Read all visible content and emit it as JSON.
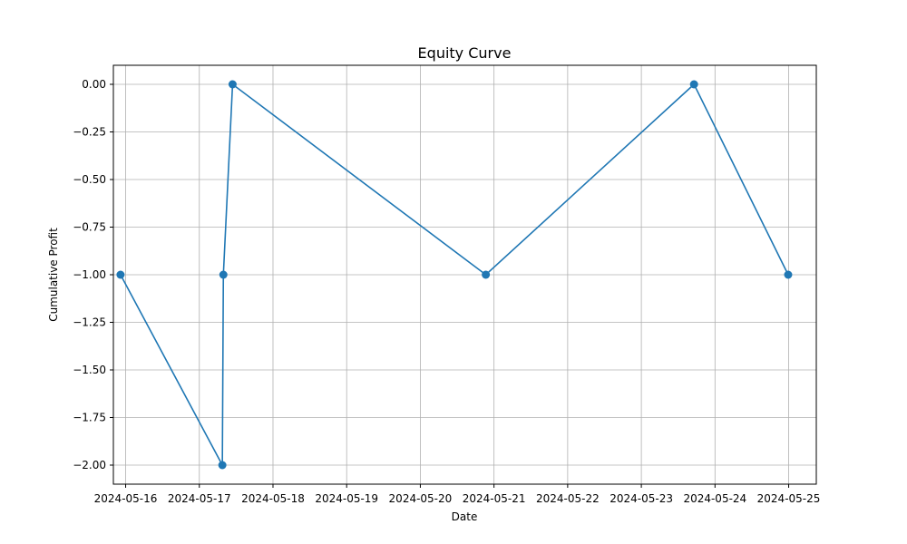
{
  "chart_data": {
    "type": "line",
    "title": "Equity Curve",
    "xlabel": "Date",
    "ylabel": "Cumulative Profit",
    "x_ticks": [
      "2024-05-16",
      "2024-05-17",
      "2024-05-18",
      "2024-05-19",
      "2024-05-20",
      "2024-05-21",
      "2024-05-22",
      "2024-05-23",
      "2024-05-24",
      "2024-05-25"
    ],
    "y_ticks": [
      "0.00",
      "−0.25",
      "−0.50",
      "−0.75",
      "−1.00",
      "−1.25",
      "−1.50",
      "−1.75",
      "−2.00"
    ],
    "y_tick_values": [
      0,
      -0.25,
      -0.5,
      -0.75,
      -1.0,
      -1.25,
      -1.5,
      -1.75,
      -2.0
    ],
    "xlim": [
      "2024-05-15 20:00",
      "2024-05-25 09:00"
    ],
    "ylim": [
      -2.1,
      0.1
    ],
    "grid": true,
    "series": [
      {
        "color": "#1f77b4",
        "marker": "circle",
        "x": [
          "2024-05-15 22:20",
          "2024-05-17 07:30",
          "2024-05-17 07:50",
          "2024-05-17 10:50",
          "2024-05-20 21:20",
          "2024-05-23 17:10",
          "2024-05-24 23:50"
        ],
        "y": [
          -1,
          -2,
          -1,
          0,
          -1,
          0,
          -1
        ]
      }
    ]
  }
}
